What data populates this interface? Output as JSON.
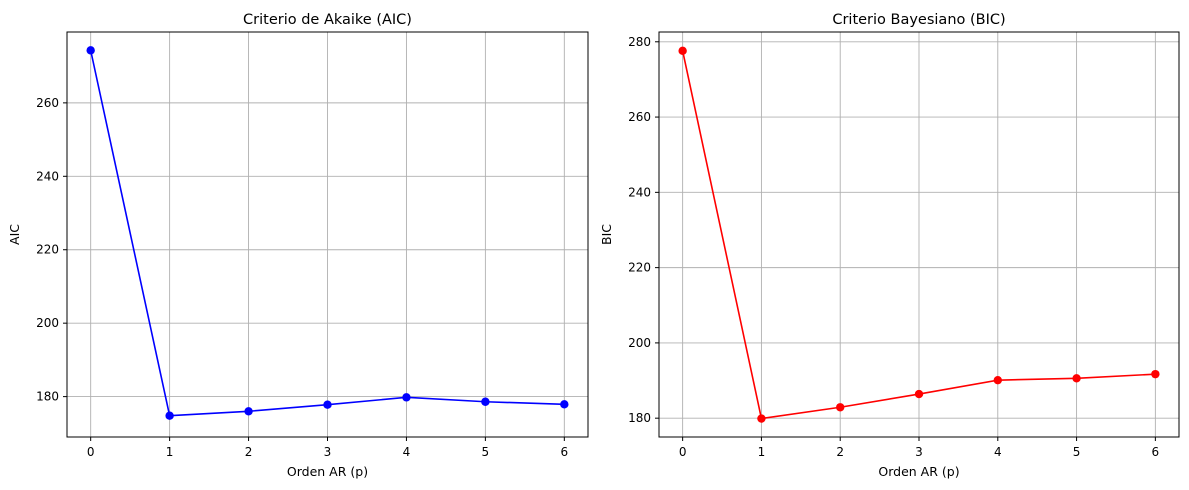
{
  "chart_data": [
    {
      "type": "line",
      "title": "Criterio de Akaike (AIC)",
      "xlabel": "Orden AR (p)",
      "ylabel": "AIC",
      "x": [
        0,
        1,
        2,
        3,
        4,
        5,
        6
      ],
      "series": [
        {
          "values": [
            274.3,
            174.8,
            176.0,
            177.8,
            179.8,
            178.6,
            177.9
          ],
          "color": "#0000ff"
        }
      ],
      "xlim": [
        -0.3,
        6.3
      ],
      "ylim": [
        169.0,
        279.3
      ],
      "xticks": [
        0,
        1,
        2,
        3,
        4,
        5,
        6
      ],
      "yticks": [
        180,
        200,
        220,
        240,
        260
      ],
      "grid": true,
      "marker": "circle"
    },
    {
      "type": "line",
      "title": "Criterio Bayesiano (BIC)",
      "xlabel": "Orden AR (p)",
      "ylabel": "BIC",
      "x": [
        0,
        1,
        2,
        3,
        4,
        5,
        6
      ],
      "series": [
        {
          "values": [
            277.6,
            179.9,
            182.9,
            186.4,
            190.1,
            190.6,
            191.7
          ],
          "color": "#ff0000"
        }
      ],
      "xlim": [
        -0.3,
        6.3
      ],
      "ylim": [
        175.0,
        282.6
      ],
      "xticks": [
        0,
        1,
        2,
        3,
        4,
        5,
        6
      ],
      "yticks": [
        180,
        200,
        220,
        240,
        260,
        280
      ],
      "grid": true,
      "marker": "circle"
    }
  ]
}
